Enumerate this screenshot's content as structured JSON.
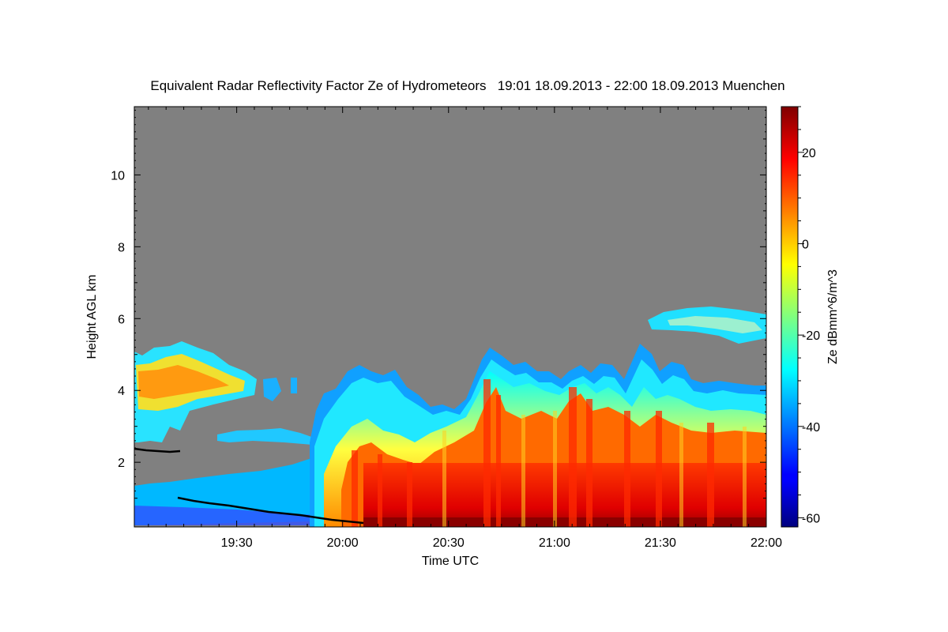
{
  "chart_data": {
    "type": "heatmap",
    "title": "Equivalent Radar Reflectivity Factor Ze of Hydrometeors   19:01 18.09.2013 - 22:00 18.09.2013 Muenchen",
    "xlabel": "Time UTC",
    "ylabel": "Height AGL km",
    "colorbar_label": "Ze dBmm^6/m^3",
    "x_range": [
      "19:01",
      "22:00"
    ],
    "y_range": [
      0.2,
      11.9
    ],
    "x_ticks": [
      "19:30",
      "20:00",
      "20:30",
      "21:00",
      "21:30",
      "22:00"
    ],
    "y_ticks": [
      2,
      4,
      6,
      8,
      10
    ],
    "colorbar_range": [
      -62,
      30
    ],
    "colorbar_ticks": [
      -60,
      -40,
      -20,
      0,
      20
    ],
    "colormap": "jet",
    "no_data_color": "#808080",
    "cloud_base_color": "#000000"
  }
}
